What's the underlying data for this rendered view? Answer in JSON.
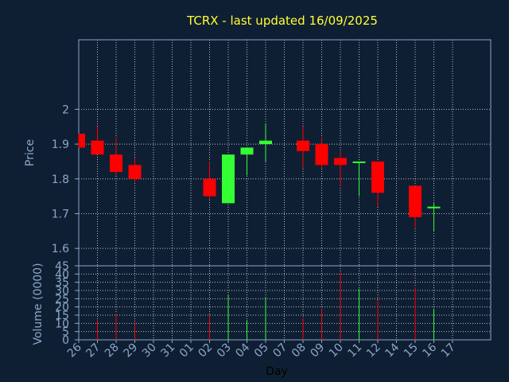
{
  "chart_data": [
    {
      "type": "candlestick",
      "title": "TCRX - last updated 16/09/2025",
      "ylabel": "Price",
      "ylim": [
        1.55,
        2.2
      ],
      "yticks": [
        "1.6",
        "1.7",
        "1.8",
        "1.9",
        "2"
      ],
      "grid": true,
      "colors": {
        "up": "#33ff33",
        "down": "#ff0000",
        "background": "#0f1f33",
        "grid": "#ffffff",
        "axis": "#8aa6c7",
        "title": "#ffff33"
      },
      "days": [
        "26",
        "27",
        "28",
        "29",
        "30",
        "31",
        "01",
        "02",
        "03",
        "04",
        "05",
        "07",
        "08",
        "09",
        "10",
        "11",
        "12",
        "14",
        "15",
        "16",
        "17"
      ],
      "candles": [
        {
          "x": 0,
          "open": 1.93,
          "high": 1.93,
          "low": 1.89,
          "close": 1.89
        },
        {
          "x": 1,
          "open": 1.91,
          "high": 1.95,
          "low": 1.87,
          "close": 1.87
        },
        {
          "x": 2,
          "open": 1.87,
          "high": 1.92,
          "low": 1.81,
          "close": 1.82
        },
        {
          "x": 3,
          "open": 1.84,
          "high": 1.86,
          "low": 1.79,
          "close": 1.8
        },
        {
          "x": 7,
          "open": 1.8,
          "high": 1.85,
          "low": 1.74,
          "close": 1.75
        },
        {
          "x": 8,
          "open": 1.73,
          "high": 1.87,
          "low": 1.73,
          "close": 1.87
        },
        {
          "x": 9,
          "open": 1.87,
          "high": 1.89,
          "low": 1.81,
          "close": 1.89
        },
        {
          "x": 10,
          "open": 1.9,
          "high": 1.96,
          "low": 1.85,
          "close": 1.91
        },
        {
          "x": 12,
          "open": 1.91,
          "high": 1.95,
          "low": 1.83,
          "close": 1.88
        },
        {
          "x": 13,
          "open": 1.9,
          "high": 1.92,
          "low": 1.83,
          "close": 1.84
        },
        {
          "x": 14,
          "open": 1.86,
          "high": 1.88,
          "low": 1.78,
          "close": 1.84
        },
        {
          "x": 15,
          "open": 1.85,
          "high": 1.85,
          "low": 1.75,
          "close": 1.85
        },
        {
          "x": 16,
          "open": 1.85,
          "high": 1.85,
          "low": 1.72,
          "close": 1.76
        },
        {
          "x": 18,
          "open": 1.78,
          "high": 1.78,
          "low": 1.66,
          "close": 1.69
        },
        {
          "x": 19,
          "open": 1.72,
          "high": 1.73,
          "low": 1.65,
          "close": 1.72
        }
      ]
    },
    {
      "type": "bar",
      "ylabel": "Volume (0000)",
      "xlabel": "Day",
      "ylim": [
        0,
        45
      ],
      "yticks": [
        "0",
        "5",
        "10",
        "15",
        "20",
        "25",
        "30",
        "35",
        "40",
        "45"
      ],
      "categories": [
        "26",
        "27",
        "28",
        "29",
        "30",
        "31",
        "01",
        "02",
        "03",
        "04",
        "05",
        "07",
        "08",
        "09",
        "10",
        "11",
        "12",
        "14",
        "15",
        "16",
        "17"
      ],
      "values": [
        0,
        12,
        16,
        10,
        0,
        0,
        0,
        15,
        27,
        12,
        26,
        0,
        13,
        19,
        41,
        31,
        24,
        0,
        32,
        19,
        0
      ],
      "bar_colors": [
        "#ff0000",
        "#ff0000",
        "#ff0000",
        "#ff0000",
        "#ff0000",
        "#ff0000",
        "#ff0000",
        "#ff0000",
        "#33ff33",
        "#33ff33",
        "#33ff33",
        "#ff0000",
        "#ff0000",
        "#ff0000",
        "#ff0000",
        "#33ff33",
        "#ff0000",
        "#ff0000",
        "#ff0000",
        "#33ff33",
        "#ff0000"
      ]
    }
  ]
}
